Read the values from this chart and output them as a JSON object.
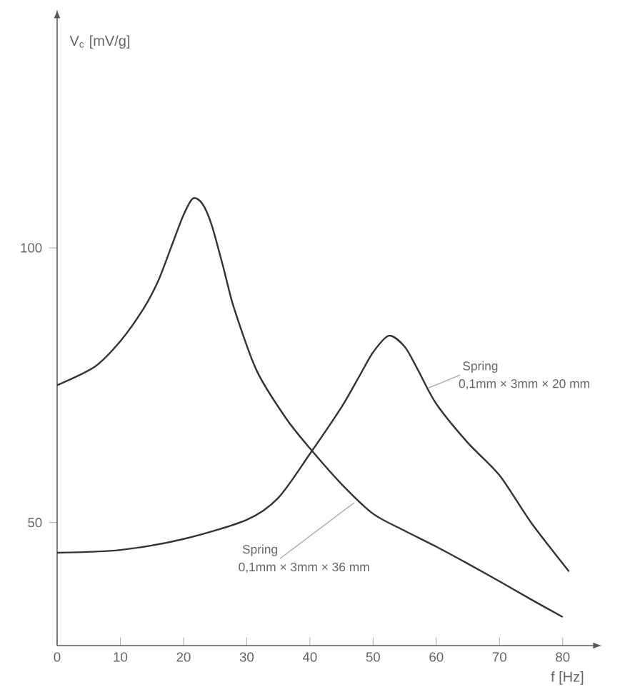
{
  "chart_data": {
    "type": "line",
    "ylabel": "V$_{c}$ [mV/g]",
    "xlabel": "f [Hz]",
    "xlim": [
      0,
      85
    ],
    "ylim": [
      27.6,
      142
    ],
    "xticks": [
      0,
      10,
      20,
      30,
      40,
      50,
      60,
      70,
      80
    ],
    "yticks": [
      50,
      100
    ],
    "grid": false,
    "legend": false,
    "marker": "none",
    "line_style": "solid",
    "series": [
      {
        "color": "#333333",
        "x": [
          0,
          6,
          10,
          13.6,
          16,
          18,
          20,
          21.5,
          23,
          24.5,
          26.4,
          28,
          31.6,
          36.2,
          40,
          45,
          50,
          55,
          60,
          65,
          70,
          75,
          80
        ],
        "values": [
          75,
          78.4,
          83,
          88.8,
          94,
          100,
          106,
          109,
          108,
          104,
          96,
          89,
          77.6,
          69,
          63.5,
          57,
          51.6,
          48.5,
          45.6,
          42.5,
          39.3,
          36,
          32.8
        ]
      },
      {
        "color": "#333333",
        "x": [
          0,
          10,
          20,
          30,
          35,
          40,
          45,
          48,
          50,
          52.5,
          55,
          57,
          60,
          65,
          70,
          75,
          81
        ],
        "values": [
          44.5,
          45,
          47,
          50.5,
          54.5,
          62.5,
          71,
          77,
          81,
          84,
          82,
          78,
          71.6,
          64.5,
          58.6,
          50,
          41.1
        ]
      }
    ],
    "annotations": [
      {
        "text": "Spring",
        "x": 58.8,
        "y": 74.5
      },
      "0,1mm × 3mm × 20 mm",
      {
        "text": "Spring",
        "x": 47,
        "y": 53.6
      },
      "0,1mm × 3mm × 36 mm"
    ]
  }
}
